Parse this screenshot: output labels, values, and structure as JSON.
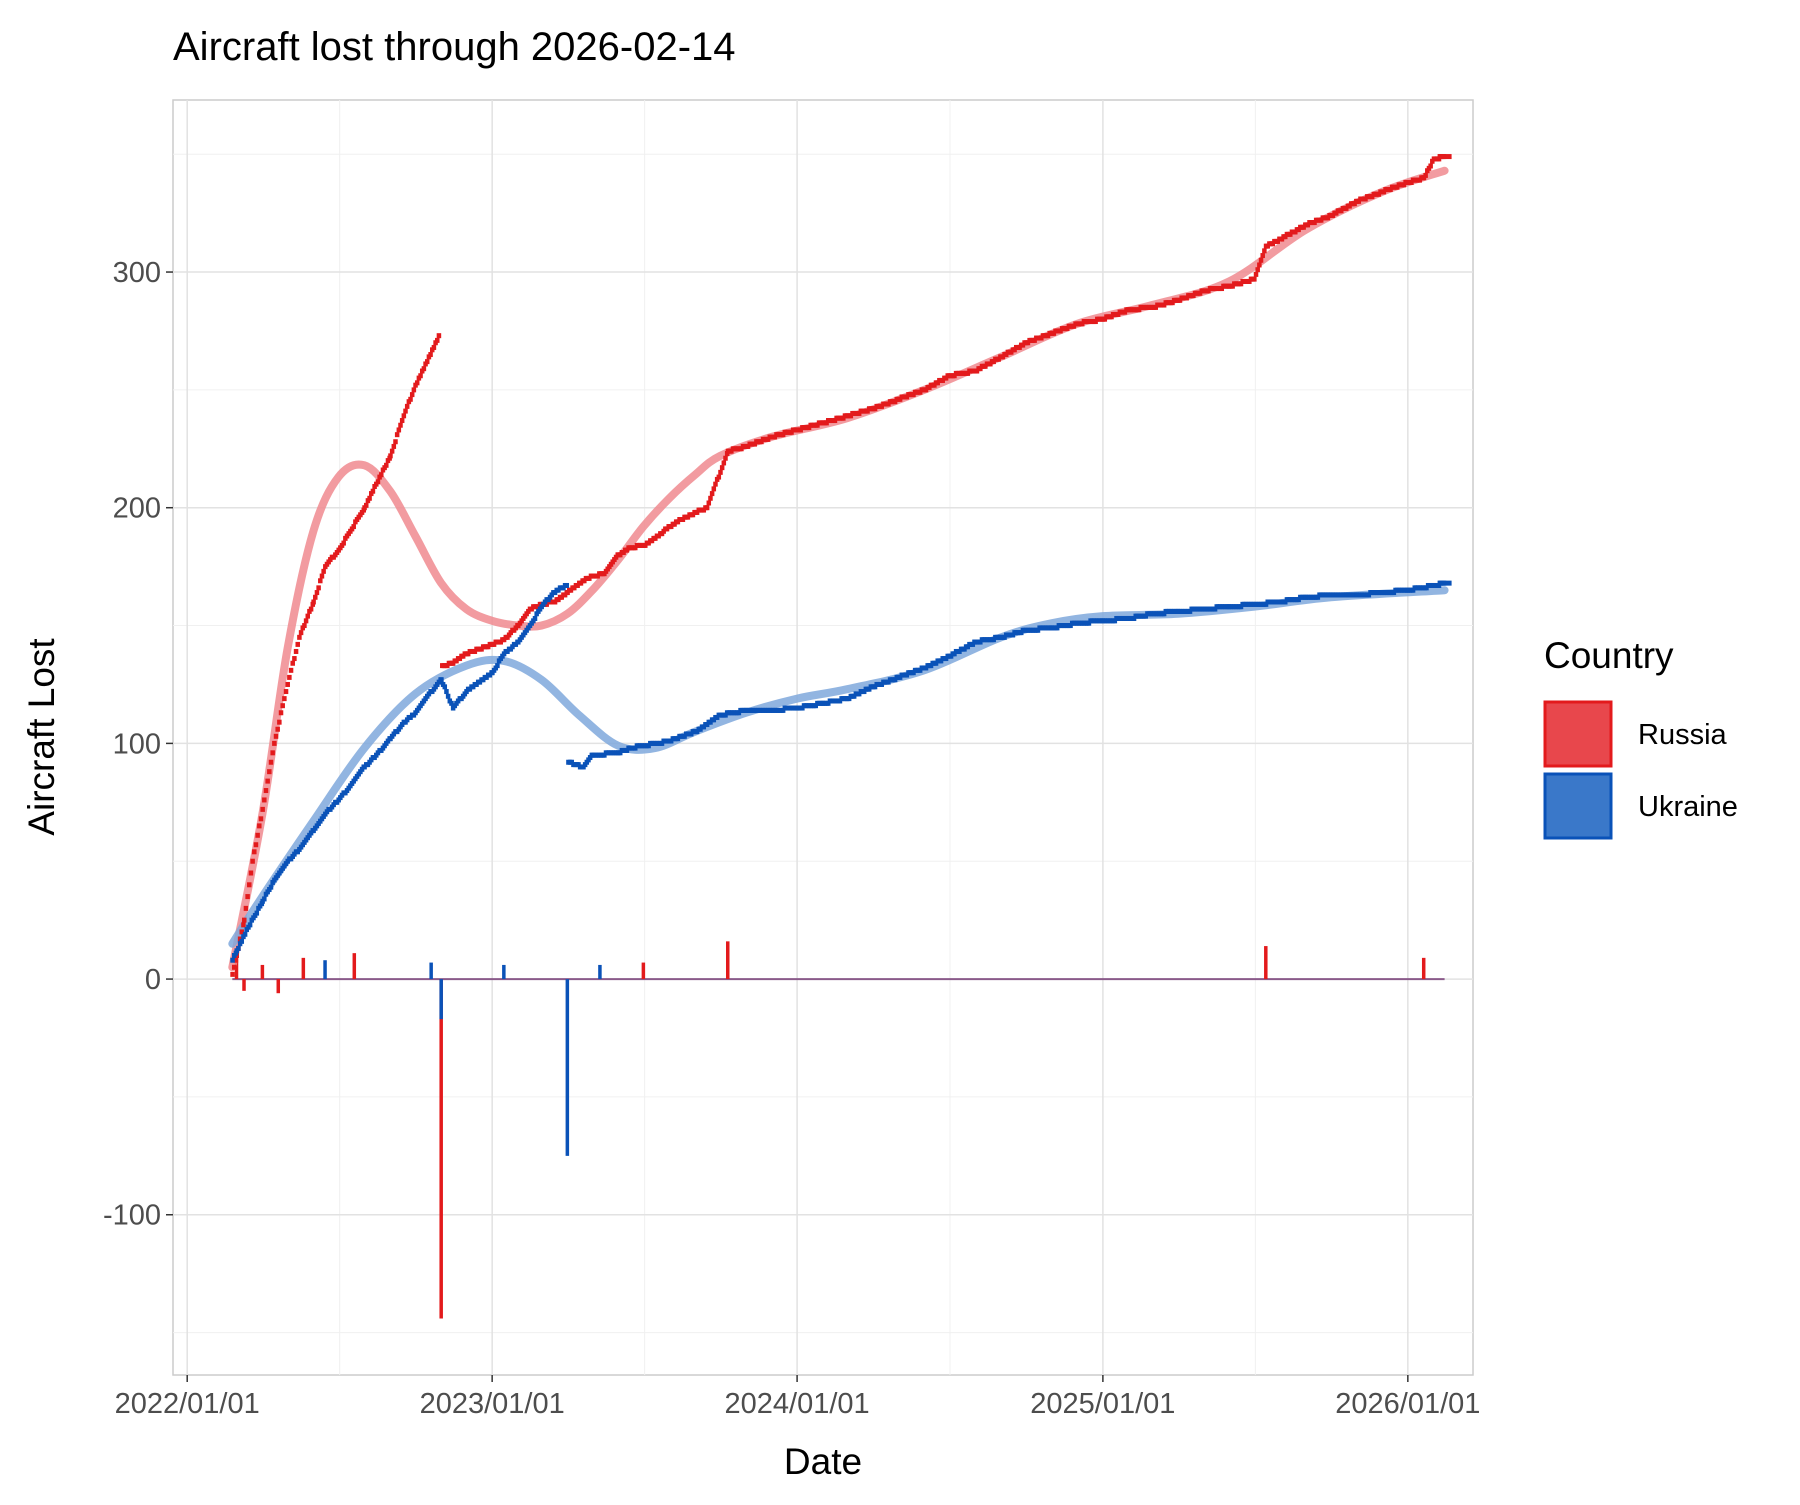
{
  "chart_data": {
    "type": "line",
    "title": "Aircraft lost through 2026-02-14",
    "xlabel": "Date",
    "ylabel": "Aircraft Lost",
    "x_ticks": [
      "2022/01/01",
      "2023/01/01",
      "2024/01/01",
      "2025/01/01",
      "2026/01/01"
    ],
    "y_ticks": [
      -100,
      0,
      100,
      200,
      300
    ],
    "xlim": [
      "2021-12-15",
      "2026-03-20"
    ],
    "ylim": [
      -168,
      373
    ],
    "grid": true,
    "legend": {
      "title": "Country",
      "position": "right",
      "entries": [
        {
          "name": "Russia",
          "color": "#e31a1c",
          "fill": "#e8474c"
        },
        {
          "name": "Ukraine",
          "color": "#0a52b8",
          "fill": "#3a78c9"
        }
      ]
    },
    "series": [
      {
        "name": "Russia",
        "kind": "cumulative",
        "color": "#e31a1c",
        "points": [
          [
            "2022-02-24",
            2
          ],
          [
            "2022-03-01",
            10
          ],
          [
            "2022-03-10",
            25
          ],
          [
            "2022-03-20",
            50
          ],
          [
            "2022-04-01",
            72
          ],
          [
            "2022-04-15",
            100
          ],
          [
            "2022-05-01",
            125
          ],
          [
            "2022-05-15",
            145
          ],
          [
            "2022-06-01",
            160
          ],
          [
            "2022-06-15",
            175
          ],
          [
            "2022-07-01",
            182
          ],
          [
            "2022-07-15",
            190
          ],
          [
            "2022-08-01",
            200
          ],
          [
            "2022-08-15",
            210
          ],
          [
            "2022-09-01",
            222
          ],
          [
            "2022-09-15",
            237
          ],
          [
            "2022-10-01",
            252
          ],
          [
            "2022-10-15",
            262
          ],
          [
            "2022-10-29",
            273
          ],
          [
            "2022-11-02",
            133
          ],
          [
            "2022-11-15",
            134
          ],
          [
            "2022-12-01",
            138
          ],
          [
            "2022-12-15",
            140
          ],
          [
            "2023-01-01",
            142
          ],
          [
            "2023-01-15",
            144
          ],
          [
            "2023-02-01",
            150
          ],
          [
            "2023-02-15",
            157
          ],
          [
            "2023-03-01",
            159
          ],
          [
            "2023-03-15",
            160
          ],
          [
            "2023-04-01",
            164
          ],
          [
            "2023-04-15",
            168
          ],
          [
            "2023-05-01",
            171
          ],
          [
            "2023-05-15",
            172
          ],
          [
            "2023-06-01",
            180
          ],
          [
            "2023-06-15",
            183
          ],
          [
            "2023-07-01",
            184
          ],
          [
            "2023-07-15",
            187
          ],
          [
            "2023-08-01",
            192
          ],
          [
            "2023-08-15",
            195
          ],
          [
            "2023-09-01",
            198
          ],
          [
            "2023-09-15",
            200
          ],
          [
            "2023-10-10",
            224
          ],
          [
            "2023-11-01",
            226
          ],
          [
            "2023-12-01",
            230
          ],
          [
            "2024-01-01",
            233
          ],
          [
            "2024-02-01",
            236
          ],
          [
            "2024-03-01",
            239
          ],
          [
            "2024-04-01",
            242
          ],
          [
            "2024-05-01",
            246
          ],
          [
            "2024-06-01",
            250
          ],
          [
            "2024-07-01",
            256
          ],
          [
            "2024-08-01",
            258
          ],
          [
            "2024-09-01",
            264
          ],
          [
            "2024-10-01",
            270
          ],
          [
            "2024-11-01",
            274
          ],
          [
            "2024-12-01",
            278
          ],
          [
            "2025-01-01",
            280
          ],
          [
            "2025-02-01",
            284
          ],
          [
            "2025-03-01",
            285
          ],
          [
            "2025-04-01",
            288
          ],
          [
            "2025-05-01",
            292
          ],
          [
            "2025-06-01",
            294
          ],
          [
            "2025-07-01",
            297
          ],
          [
            "2025-07-15",
            311
          ],
          [
            "2025-08-01",
            314
          ],
          [
            "2025-09-01",
            320
          ],
          [
            "2025-10-01",
            324
          ],
          [
            "2025-11-01",
            330
          ],
          [
            "2025-12-01",
            334
          ],
          [
            "2026-01-01",
            338
          ],
          [
            "2026-01-20",
            340
          ],
          [
            "2026-02-01",
            348
          ],
          [
            "2026-02-14",
            349
          ]
        ]
      },
      {
        "name": "Ukraine",
        "kind": "cumulative",
        "color": "#0a52b8",
        "points": [
          [
            "2022-02-24",
            8
          ],
          [
            "2022-03-01",
            12
          ],
          [
            "2022-03-15",
            22
          ],
          [
            "2022-04-01",
            33
          ],
          [
            "2022-04-15",
            42
          ],
          [
            "2022-05-01",
            50
          ],
          [
            "2022-05-15",
            55
          ],
          [
            "2022-06-01",
            63
          ],
          [
            "2022-06-15",
            70
          ],
          [
            "2022-07-01",
            76
          ],
          [
            "2022-07-15",
            82
          ],
          [
            "2022-08-01",
            90
          ],
          [
            "2022-08-15",
            95
          ],
          [
            "2022-09-01",
            102
          ],
          [
            "2022-09-15",
            108
          ],
          [
            "2022-10-01",
            113
          ],
          [
            "2022-10-15",
            120
          ],
          [
            "2022-11-01",
            127
          ],
          [
            "2022-11-15",
            115
          ],
          [
            "2022-12-01",
            122
          ],
          [
            "2022-12-15",
            126
          ],
          [
            "2023-01-01",
            130
          ],
          [
            "2023-01-15",
            138
          ],
          [
            "2023-02-01",
            143
          ],
          [
            "2023-02-15",
            150
          ],
          [
            "2023-03-01",
            158
          ],
          [
            "2023-03-15",
            164
          ],
          [
            "2023-03-31",
            167
          ],
          [
            "2023-04-02",
            92
          ],
          [
            "2023-04-20",
            90
          ],
          [
            "2023-05-01",
            95
          ],
          [
            "2023-06-01",
            96
          ],
          [
            "2023-06-15",
            98
          ],
          [
            "2023-07-01",
            99
          ],
          [
            "2023-08-01",
            101
          ],
          [
            "2023-09-01",
            105
          ],
          [
            "2023-10-01",
            112
          ],
          [
            "2023-11-01",
            114
          ],
          [
            "2023-12-01",
            114
          ],
          [
            "2024-01-01",
            115
          ],
          [
            "2024-02-01",
            117
          ],
          [
            "2024-03-01",
            119
          ],
          [
            "2024-04-01",
            124
          ],
          [
            "2024-05-01",
            128
          ],
          [
            "2024-06-01",
            132
          ],
          [
            "2024-07-01",
            137
          ],
          [
            "2024-08-01",
            143
          ],
          [
            "2024-09-01",
            145
          ],
          [
            "2024-10-01",
            148
          ],
          [
            "2024-11-01",
            149
          ],
          [
            "2024-12-01",
            151
          ],
          [
            "2025-01-01",
            152
          ],
          [
            "2025-02-01",
            153
          ],
          [
            "2025-03-01",
            155
          ],
          [
            "2025-04-01",
            156
          ],
          [
            "2025-05-01",
            157
          ],
          [
            "2025-06-01",
            158
          ],
          [
            "2025-07-01",
            159
          ],
          [
            "2025-08-01",
            160
          ],
          [
            "2025-09-01",
            162
          ],
          [
            "2025-10-01",
            163
          ],
          [
            "2025-11-01",
            163
          ],
          [
            "2025-12-01",
            164
          ],
          [
            "2026-01-01",
            165
          ],
          [
            "2026-02-01",
            167
          ],
          [
            "2026-02-14",
            168
          ]
        ]
      },
      {
        "name": "Russia",
        "kind": "smooth",
        "color": "#f08a8f",
        "points": [
          [
            "2022-02-24",
            5
          ],
          [
            "2022-04-01",
            70
          ],
          [
            "2022-05-01",
            140
          ],
          [
            "2022-06-01",
            190
          ],
          [
            "2022-07-01",
            213
          ],
          [
            "2022-08-01",
            218
          ],
          [
            "2022-09-01",
            207
          ],
          [
            "2022-10-01",
            188
          ],
          [
            "2022-11-01",
            168
          ],
          [
            "2022-12-01",
            157
          ],
          [
            "2023-01-01",
            152
          ],
          [
            "2023-02-01",
            150
          ],
          [
            "2023-03-01",
            150
          ],
          [
            "2023-04-01",
            155
          ],
          [
            "2023-05-01",
            165
          ],
          [
            "2023-06-01",
            178
          ],
          [
            "2023-07-01",
            192
          ],
          [
            "2023-08-01",
            204
          ],
          [
            "2023-09-01",
            214
          ],
          [
            "2023-10-01",
            222
          ],
          [
            "2023-12-01",
            230
          ],
          [
            "2024-03-01",
            238
          ],
          [
            "2024-06-01",
            250
          ],
          [
            "2024-09-01",
            264
          ],
          [
            "2024-12-01",
            278
          ],
          [
            "2025-03-01",
            286
          ],
          [
            "2025-06-01",
            296
          ],
          [
            "2025-09-01",
            318
          ],
          [
            "2025-12-01",
            334
          ],
          [
            "2026-02-14",
            343
          ]
        ]
      },
      {
        "name": "Ukraine",
        "kind": "smooth",
        "color": "#7fa8dc",
        "points": [
          [
            "2022-02-24",
            15
          ],
          [
            "2022-04-01",
            35
          ],
          [
            "2022-06-01",
            67
          ],
          [
            "2022-08-01",
            98
          ],
          [
            "2022-10-01",
            121
          ],
          [
            "2022-12-01",
            133
          ],
          [
            "2023-01-15",
            135
          ],
          [
            "2023-03-01",
            127
          ],
          [
            "2023-04-15",
            112
          ],
          [
            "2023-06-01",
            99
          ],
          [
            "2023-07-15",
            98
          ],
          [
            "2023-09-01",
            105
          ],
          [
            "2023-11-01",
            113
          ],
          [
            "2024-01-01",
            119
          ],
          [
            "2024-03-01",
            123
          ],
          [
            "2024-06-01",
            131
          ],
          [
            "2024-09-01",
            145
          ],
          [
            "2024-11-01",
            151
          ],
          [
            "2025-01-01",
            154
          ],
          [
            "2025-04-01",
            155
          ],
          [
            "2025-07-01",
            158
          ],
          [
            "2025-10-01",
            162
          ],
          [
            "2026-02-14",
            165
          ]
        ]
      },
      {
        "name": "Russia",
        "kind": "daily",
        "color": "#e31a1c",
        "points": [
          [
            "2022-03-01",
            10
          ],
          [
            "2022-03-10",
            -5
          ],
          [
            "2022-04-01",
            6
          ],
          [
            "2022-04-20",
            -6
          ],
          [
            "2022-05-20",
            9
          ],
          [
            "2022-07-20",
            11
          ],
          [
            "2022-11-01",
            -144
          ],
          [
            "2023-07-01",
            7
          ],
          [
            "2023-10-10",
            16
          ],
          [
            "2025-07-15",
            14
          ],
          [
            "2026-01-20",
            9
          ]
        ]
      },
      {
        "name": "Ukraine",
        "kind": "daily",
        "color": "#0a52b8",
        "points": [
          [
            "2022-06-15",
            8
          ],
          [
            "2022-10-20",
            7
          ],
          [
            "2022-11-01",
            -17
          ],
          [
            "2023-01-15",
            6
          ],
          [
            "2023-04-01",
            -75
          ],
          [
            "2023-05-10",
            6
          ]
        ]
      }
    ]
  }
}
